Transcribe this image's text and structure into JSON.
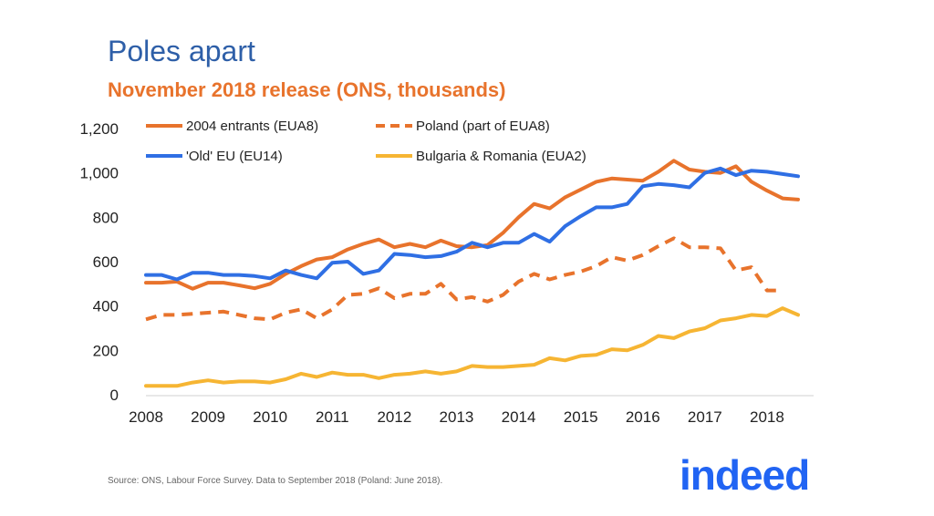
{
  "title": "Poles apart",
  "subtitle": "November 2018 release (ONS, thousands)",
  "source": "Source: ONS, Labour Force Survey. Data to September 2018 (Poland: June 2018).",
  "logo_text": "indeed",
  "colors": {
    "orange": "#e8732c",
    "blue": "#2f6fe4",
    "yellow": "#f6b533",
    "title": "#2e5fa8"
  },
  "chart_data": {
    "type": "line",
    "x_start": 2008.0,
    "x_step": 0.25,
    "xlim": [
      2008,
      2018.75
    ],
    "ylim": [
      0,
      1200
    ],
    "y_ticks": [
      "0",
      "200",
      "400",
      "600",
      "800",
      "1,000",
      "1,200"
    ],
    "x_ticks": [
      "2008",
      "2009",
      "2010",
      "2011",
      "2012",
      "2013",
      "2014",
      "2015",
      "2016",
      "2017",
      "2018"
    ],
    "legend_placement": "top",
    "grid": false,
    "series": [
      {
        "name": "2004 entrants (EUA8)",
        "style": "solid",
        "color": "#e8732c",
        "values": [
          505,
          505,
          510,
          478,
          505,
          505,
          493,
          480,
          500,
          545,
          580,
          610,
          620,
          655,
          680,
          700,
          665,
          680,
          665,
          695,
          670,
          665,
          675,
          730,
          800,
          860,
          840,
          890,
          925,
          960,
          975,
          970,
          965,
          1005,
          1055,
          1015,
          1005,
          1000,
          1030,
          960,
          920,
          885,
          880
        ]
      },
      {
        "name": "Poland (part of EUA8)",
        "style": "dashed",
        "color": "#e8732c",
        "values": [
          340,
          360,
          360,
          365,
          370,
          375,
          360,
          345,
          340,
          370,
          385,
          345,
          385,
          450,
          455,
          480,
          435,
          455,
          455,
          500,
          430,
          440,
          420,
          450,
          510,
          545,
          520,
          540,
          555,
          580,
          620,
          605,
          630,
          670,
          705,
          665,
          665,
          660,
          560,
          575,
          470,
          470
        ]
      },
      {
        "name": "'Old' EU (EU14)",
        "style": "solid",
        "color": "#2f6fe4",
        "values": [
          540,
          540,
          520,
          550,
          550,
          540,
          540,
          535,
          525,
          560,
          540,
          525,
          595,
          600,
          545,
          560,
          635,
          630,
          620,
          625,
          645,
          685,
          665,
          685,
          685,
          725,
          690,
          760,
          805,
          845,
          845,
          860,
          940,
          950,
          945,
          935,
          1000,
          1020,
          990,
          1010,
          1005,
          995,
          985
        ]
      },
      {
        "name": "Bulgaria & Romania (EUA2)",
        "style": "solid",
        "color": "#f6b533",
        "values": [
          40,
          40,
          40,
          55,
          65,
          55,
          60,
          60,
          55,
          70,
          95,
          80,
          100,
          90,
          90,
          75,
          90,
          95,
          105,
          95,
          105,
          130,
          125,
          125,
          130,
          135,
          165,
          155,
          175,
          180,
          205,
          200,
          225,
          265,
          255,
          285,
          300,
          335,
          345,
          360,
          355,
          390,
          360
        ]
      }
    ]
  }
}
